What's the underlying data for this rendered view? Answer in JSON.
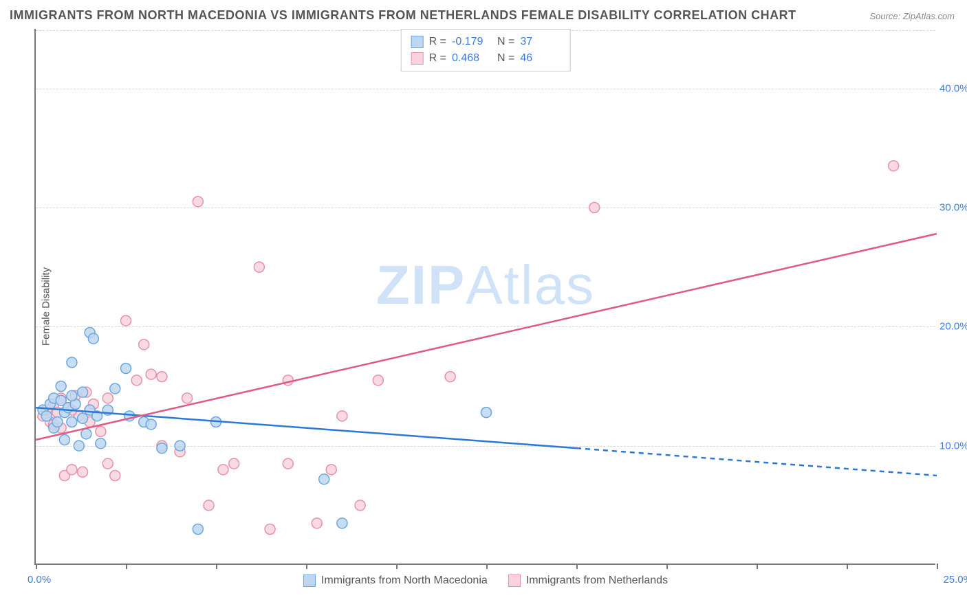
{
  "title": "IMMIGRANTS FROM NORTH MACEDONIA VS IMMIGRANTS FROM NETHERLANDS FEMALE DISABILITY CORRELATION CHART",
  "source": "Source: ZipAtlas.com",
  "y_axis_title": "Female Disability",
  "watermark_bold": "ZIP",
  "watermark_light": "Atlas",
  "chart": {
    "type": "scatter",
    "xlim": [
      0,
      25
    ],
    "ylim": [
      0,
      45
    ],
    "x_ticks": [
      0,
      2.5,
      5,
      7.5,
      10,
      12.5,
      15,
      17.5,
      20,
      22.5,
      25
    ],
    "x_tick_labels_shown": {
      "0": "0.0%",
      "25": "25.0%"
    },
    "y_gridlines": [
      10,
      20,
      30,
      40
    ],
    "y_tick_labels": {
      "10": "10.0%",
      "20": "20.0%",
      "30": "30.0%",
      "40": "40.0%"
    },
    "background_color": "#ffffff",
    "grid_color": "#d8d8d8",
    "axis_color": "#777777",
    "tick_label_color": "#3b7dd8",
    "series": [
      {
        "id": "macedonia",
        "label": "Immigrants from North Macedonia",
        "point_fill": "#bdd7f0",
        "point_stroke": "#6aa6e0",
        "line_color": "#2b78d6",
        "line_width": 2.5,
        "R": "-0.179",
        "N": "37",
        "trend": {
          "x1": 0,
          "y1": 13.2,
          "x2_solid": 15,
          "y2_solid": 9.8,
          "x2_dash": 25,
          "y2_dash": 7.5
        },
        "points": [
          [
            0.2,
            13.0
          ],
          [
            0.3,
            12.5
          ],
          [
            0.4,
            13.5
          ],
          [
            0.5,
            14.0
          ],
          [
            0.5,
            11.5
          ],
          [
            0.6,
            12.0
          ],
          [
            0.7,
            13.8
          ],
          [
            0.7,
            15.0
          ],
          [
            0.8,
            12.8
          ],
          [
            0.8,
            10.5
          ],
          [
            0.9,
            13.2
          ],
          [
            1.0,
            12.0
          ],
          [
            1.0,
            17.0
          ],
          [
            1.1,
            13.5
          ],
          [
            1.2,
            10.0
          ],
          [
            1.3,
            14.5
          ],
          [
            1.3,
            12.3
          ],
          [
            1.4,
            11.0
          ],
          [
            1.5,
            13.0
          ],
          [
            1.5,
            19.5
          ],
          [
            1.6,
            19.0
          ],
          [
            1.7,
            12.5
          ],
          [
            1.8,
            10.2
          ],
          [
            2.0,
            13.0
          ],
          [
            2.2,
            14.8
          ],
          [
            2.5,
            16.5
          ],
          [
            2.6,
            12.5
          ],
          [
            3.0,
            12.0
          ],
          [
            3.2,
            11.8
          ],
          [
            3.5,
            9.8
          ],
          [
            4.0,
            10.0
          ],
          [
            4.5,
            3.0
          ],
          [
            5.0,
            12.0
          ],
          [
            8.0,
            7.2
          ],
          [
            8.5,
            3.5
          ],
          [
            12.5,
            12.8
          ],
          [
            1.0,
            14.2
          ]
        ]
      },
      {
        "id": "netherlands",
        "label": "Immigrants from Netherlands",
        "point_fill": "#f7d4dd",
        "point_stroke": "#e98fa8",
        "line_color": "#e05a84",
        "line_width": 2.5,
        "R": "0.468",
        "N": "46",
        "trend": {
          "x1": 0,
          "y1": 10.5,
          "x2_solid": 25,
          "y2_solid": 27.8,
          "x2_dash": 25,
          "y2_dash": 27.8
        },
        "points": [
          [
            0.2,
            12.5
          ],
          [
            0.3,
            13.0
          ],
          [
            0.4,
            12.0
          ],
          [
            0.5,
            13.5
          ],
          [
            0.5,
            11.8
          ],
          [
            0.6,
            12.8
          ],
          [
            0.7,
            11.5
          ],
          [
            0.7,
            14.0
          ],
          [
            0.8,
            7.5
          ],
          [
            0.9,
            13.2
          ],
          [
            1.0,
            8.0
          ],
          [
            1.1,
            14.2
          ],
          [
            1.2,
            12.5
          ],
          [
            1.3,
            7.8
          ],
          [
            1.4,
            14.5
          ],
          [
            1.5,
            12.0
          ],
          [
            1.6,
            13.5
          ],
          [
            1.8,
            11.2
          ],
          [
            2.0,
            14.0
          ],
          [
            2.0,
            8.5
          ],
          [
            2.2,
            7.5
          ],
          [
            2.5,
            20.5
          ],
          [
            2.8,
            15.5
          ],
          [
            3.0,
            18.5
          ],
          [
            3.2,
            16.0
          ],
          [
            3.5,
            10.0
          ],
          [
            3.5,
            15.8
          ],
          [
            4.0,
            9.5
          ],
          [
            4.2,
            14.0
          ],
          [
            4.5,
            30.5
          ],
          [
            4.8,
            5.0
          ],
          [
            5.2,
            8.0
          ],
          [
            5.5,
            8.5
          ],
          [
            6.2,
            25.0
          ],
          [
            6.5,
            3.0
          ],
          [
            7.0,
            15.5
          ],
          [
            7.0,
            8.5
          ],
          [
            7.8,
            3.5
          ],
          [
            8.2,
            8.0
          ],
          [
            8.5,
            12.5
          ],
          [
            9.0,
            5.0
          ],
          [
            9.5,
            15.5
          ],
          [
            11.5,
            15.8
          ],
          [
            15.5,
            30.0
          ],
          [
            23.8,
            33.5
          ],
          [
            1.0,
            13.0
          ]
        ]
      }
    ]
  },
  "stats_legend": {
    "r_label": "R =",
    "n_label": "N ="
  }
}
